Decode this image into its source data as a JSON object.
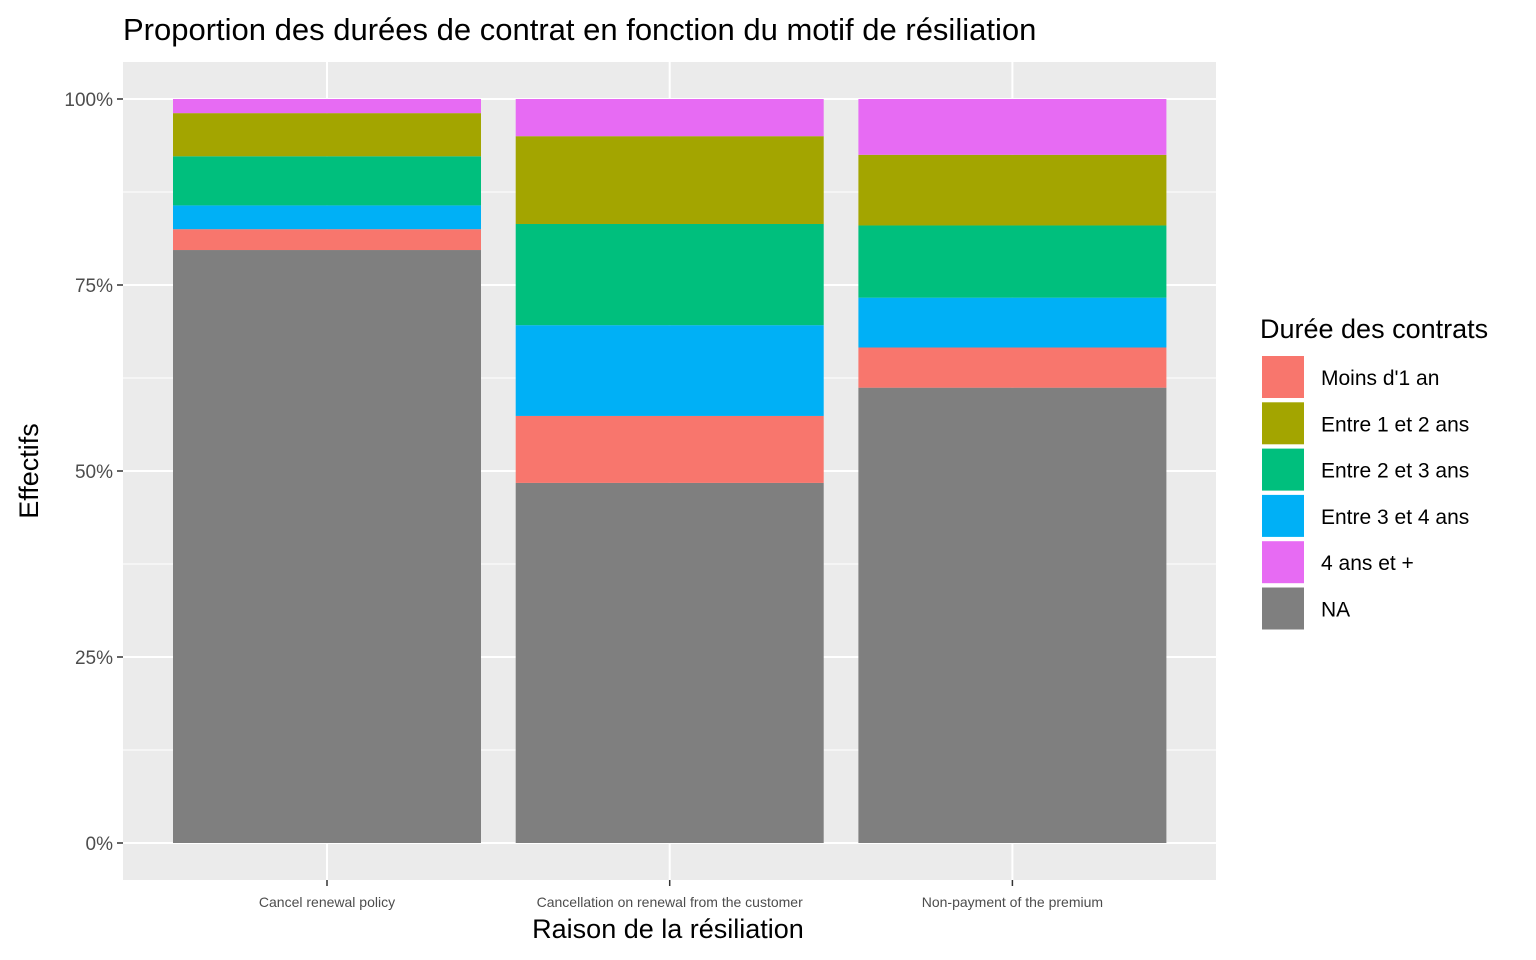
{
  "chart_data": {
    "type": "bar",
    "stacked": "percent",
    "title": "Proportion des durées de contrat en fonction du motif de résiliation",
    "xlabel": "Raison de la résiliation",
    "ylabel": "Effectifs",
    "ylim": [
      0,
      1
    ],
    "y_ticks": [
      "0%",
      "25%",
      "50%",
      "75%",
      "100%"
    ],
    "grid": true,
    "legend_position": "right",
    "legend_title": "Durée des contrats",
    "categories": [
      "Cancel renewal policy",
      "Cancellation on renewal from the customer",
      "Non-payment of the premium"
    ],
    "series": [
      {
        "name": "Moins d'1 an",
        "color": "#F8766D",
        "values": [
          0.028,
          0.09,
          0.054
        ]
      },
      {
        "name": "Entre 1 et 2 ans",
        "color": "#A3A500",
        "values": [
          0.058,
          0.118,
          0.095
        ]
      },
      {
        "name": "Entre 2 et 3 ans",
        "color": "#00BF7D",
        "values": [
          0.066,
          0.136,
          0.097
        ]
      },
      {
        "name": "Entre 3 et 4 ans",
        "color": "#00B0F6",
        "values": [
          0.032,
          0.122,
          0.067
        ]
      },
      {
        "name": "4 ans et +",
        "color": "#E76BF3",
        "values": [
          0.019,
          0.05,
          0.075
        ]
      },
      {
        "name": "NA",
        "color": "#7F7F7F",
        "values": [
          0.797,
          0.484,
          0.612
        ]
      }
    ],
    "stack_order_bottom_to_top": [
      "NA",
      "Moins d'1 an",
      "Entre 3 et 4 ans",
      "Entre 2 et 3 ans",
      "Entre 1 et 2 ans",
      "4 ans et +"
    ]
  }
}
